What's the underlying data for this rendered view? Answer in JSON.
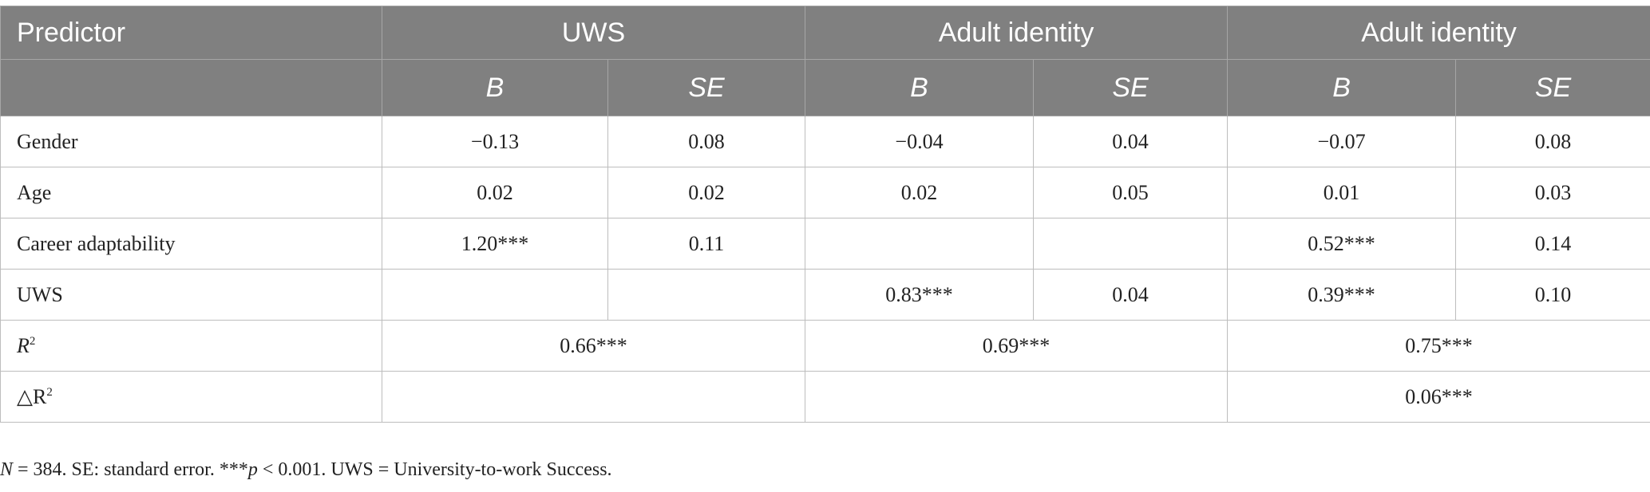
{
  "table": {
    "header": [
      "Predictor",
      "UWS",
      "Adult identity",
      "Adult identity"
    ],
    "subheader": [
      "B",
      "SE",
      "B",
      "SE",
      "B",
      "SE"
    ],
    "rows": [
      {
        "label": "Gender",
        "cells": [
          "−0.13",
          "0.08",
          "−0.04",
          "0.04",
          "−0.07",
          "0.08"
        ]
      },
      {
        "label": "Age",
        "cells": [
          "0.02",
          "0.02",
          "0.02",
          "0.05",
          "0.01",
          "0.03"
        ]
      },
      {
        "label": "Career adaptability",
        "cells": [
          "1.20***",
          "0.11",
          null,
          null,
          "0.52***",
          "0.14"
        ]
      },
      {
        "label": "UWS",
        "cells": [
          null,
          null,
          "0.83***",
          "0.04",
          "0.39***",
          "0.10"
        ]
      },
      {
        "label": "R",
        "label_sup": "2",
        "cells": [
          "0.66***",
          "0.69***",
          "0.75***"
        ]
      },
      {
        "label": "△R",
        "label_sup": "2",
        "cells": [
          null,
          null,
          "0.06***"
        ]
      }
    ]
  },
  "footnote": [
    "N",
    " = 384. SE: standard error. ***",
    "p",
    " < 0.001. UWS = University-to-work Success."
  ]
}
